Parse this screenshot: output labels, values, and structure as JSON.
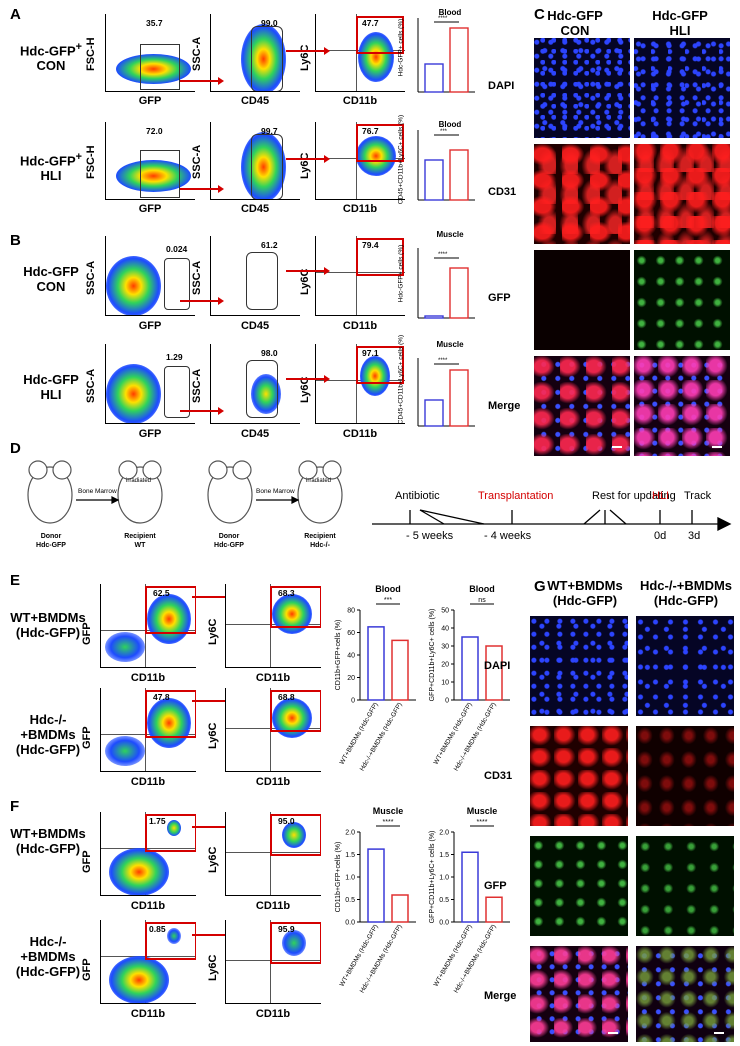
{
  "panels": {
    "A": "A",
    "B": "B",
    "C": "C",
    "D": "D",
    "E": "E",
    "F": "F",
    "G": "G"
  },
  "panelA": {
    "rows": [
      {
        "label_line1": "Hdc-GFP",
        "sup": "+",
        "label_line2": "CON",
        "gates": [
          "35.7",
          "99.0",
          "47.7"
        ]
      },
      {
        "label_line1": "Hdc-GFP",
        "sup": "+",
        "label_line2": "HLI",
        "gates": [
          "72.0",
          "99.7",
          "76.7"
        ]
      }
    ],
    "axes": {
      "fsc": "FSC-H",
      "ssc": "SSC-A",
      "gfp": "GFP",
      "cd45": "CD45",
      "ly6c": "Ly6C",
      "cd11b": "CD11b"
    },
    "charts": [
      {
        "title": "Blood",
        "sig": "****",
        "ylabel": "Hdc-GFP+ cells (%)",
        "cats": [
          "Hdc-GFP +CON",
          "Hdc-GFP +HLI"
        ]
      },
      {
        "title": "Blood",
        "sig": "***",
        "ylabel": "CD45+CD11b+Ly6C+ cells (%)",
        "cats": [
          "Hdc-GFP +CON",
          "Hdc-GFP +HLI"
        ]
      }
    ]
  },
  "panelB": {
    "rows": [
      {
        "label_line1": "Hdc-GFP",
        "label_line2": "CON",
        "gates": [
          "0.024",
          "61.2",
          "79.4"
        ]
      },
      {
        "label_line1": "Hdc-GFP",
        "label_line2": "HLI",
        "gates": [
          "1.29",
          "98.0",
          "97.1"
        ]
      }
    ],
    "charts": [
      {
        "title": "Muscle",
        "sig": "****",
        "ylabel": "Hdc-GFP+ cells (%)",
        "cats": [
          "Hdc-GFP +CON",
          "Hdc-GFP +HLI"
        ]
      },
      {
        "title": "Muscle",
        "sig": "****",
        "ylabel": "CD45+CD11b+Ly6C+ cells (%)",
        "cats": [
          "Hdc-GFP +CON",
          "Hdc-GFP +HLI"
        ]
      }
    ]
  },
  "panelC": {
    "col1_line1": "Hdc-GFP",
    "col1_line2": "CON",
    "col2_line1": "Hdc-GFP",
    "col2_line2": "HLI",
    "rows": [
      "DAPI",
      "CD31",
      "GFP",
      "Merge"
    ]
  },
  "panelD": {
    "mice": [
      {
        "role": "Donor",
        "name": "Hdc-GFP"
      },
      {
        "role": "Recipient",
        "name": "WT"
      },
      {
        "role": "Donor",
        "name": "Hdc-GFP"
      },
      {
        "role": "Recipient",
        "name": "Hdc-/-"
      }
    ],
    "arrow_label": "Bone Marrow",
    "irradiated": "irradiated",
    "timeline": {
      "events": [
        "Antibiotic",
        "Transplantation",
        "Rest for updating",
        "HLI",
        "Track"
      ],
      "ticks": [
        "-  5 weeks",
        "-  4 weeks",
        "0d",
        "3d"
      ]
    }
  },
  "panelE": {
    "rows": [
      {
        "label_line1": "WT+BMDMs",
        "label_line2": "(Hdc-GFP)",
        "gates": [
          "62.5",
          "68.3"
        ]
      },
      {
        "label_line1": "Hdc-/-+BMDMs",
        "label_line2": "(Hdc-GFP)",
        "gates": [
          "47.8",
          "68.8"
        ]
      }
    ],
    "chart1": {
      "title": "Blood",
      "sig": "***",
      "ylabel": "CD11b+GFP+cells (%)",
      "yticks": [
        "0",
        "20",
        "40",
        "60",
        "80"
      ]
    },
    "chart2": {
      "title": "Blood",
      "sig": "ns",
      "ylabel": "GFP+CD11b+Ly6C+ cells (%)",
      "yticks": [
        "0",
        "10",
        "20",
        "30",
        "40",
        "50"
      ]
    },
    "cats": [
      "WT+BMDMs (Hdc-GFP)",
      "Hdc-/-+BMDMs (Hdc-GFP)"
    ]
  },
  "panelF": {
    "rows": [
      {
        "label_line1": "WT+BMDMs",
        "label_line2": "(Hdc-GFP)",
        "gates": [
          "1.75",
          "95.0"
        ]
      },
      {
        "label_line1": "Hdc-/-+BMDMs",
        "label_line2": "(Hdc-GFP)",
        "gates": [
          "0.85",
          "95.9"
        ]
      }
    ],
    "chart1": {
      "title": "Muscle",
      "sig": "****",
      "ylabel": "CD11b+GFP+cells (%)",
      "yticks": [
        "0.0",
        "0.5",
        "1.0",
        "1.5",
        "2.0"
      ]
    },
    "chart2": {
      "title": "Muscle",
      "sig": "****",
      "ylabel": "GFP+CD11b+Ly6C+ cells (%)",
      "yticks": [
        "0.0",
        "0.5",
        "1.0",
        "1.5",
        "2.0"
      ]
    }
  },
  "panelG": {
    "col1_line1": "WT+BMDMs",
    "col1_line2": "(Hdc-GFP)",
    "col2_line1": "Hdc-/-+BMDMs",
    "col2_line2": "(Hdc-GFP)",
    "rows": [
      "DAPI",
      "CD31",
      "GFP",
      "Merge"
    ]
  },
  "chart_data": [
    {
      "type": "bar",
      "title": "Blood",
      "categories": [
        "WT+BMDMs (Hdc-GFP)",
        "Hdc-/-+BMDMs (Hdc-GFP)"
      ],
      "values": [
        65,
        53
      ],
      "ylabel": "CD11b+GFP+cells (%)",
      "ylim": [
        0,
        80
      ]
    },
    {
      "type": "bar",
      "title": "Blood",
      "categories": [
        "WT+BMDMs (Hdc-GFP)",
        "Hdc-/-+BMDMs (Hdc-GFP)"
      ],
      "values": [
        35,
        30
      ],
      "ylabel": "GFP+CD11b+Ly6C+ cells (%)",
      "ylim": [
        0,
        50
      ]
    },
    {
      "type": "bar",
      "title": "Muscle",
      "categories": [
        "WT+BMDMs (Hdc-GFP)",
        "Hdc-/-+BMDMs (Hdc-GFP)"
      ],
      "values": [
        1.62,
        0.6
      ],
      "ylabel": "CD11b+GFP+cells (%)",
      "ylim": [
        0,
        2.0
      ]
    },
    {
      "type": "bar",
      "title": "Muscle",
      "categories": [
        "WT+BMDMs (Hdc-GFP)",
        "Hdc-/-+BMDMs (Hdc-GFP)"
      ],
      "values": [
        1.55,
        0.55
      ],
      "ylabel": "GFP+CD11b+Ly6C+ cells (%)",
      "ylim": [
        0,
        2.0
      ]
    }
  ]
}
